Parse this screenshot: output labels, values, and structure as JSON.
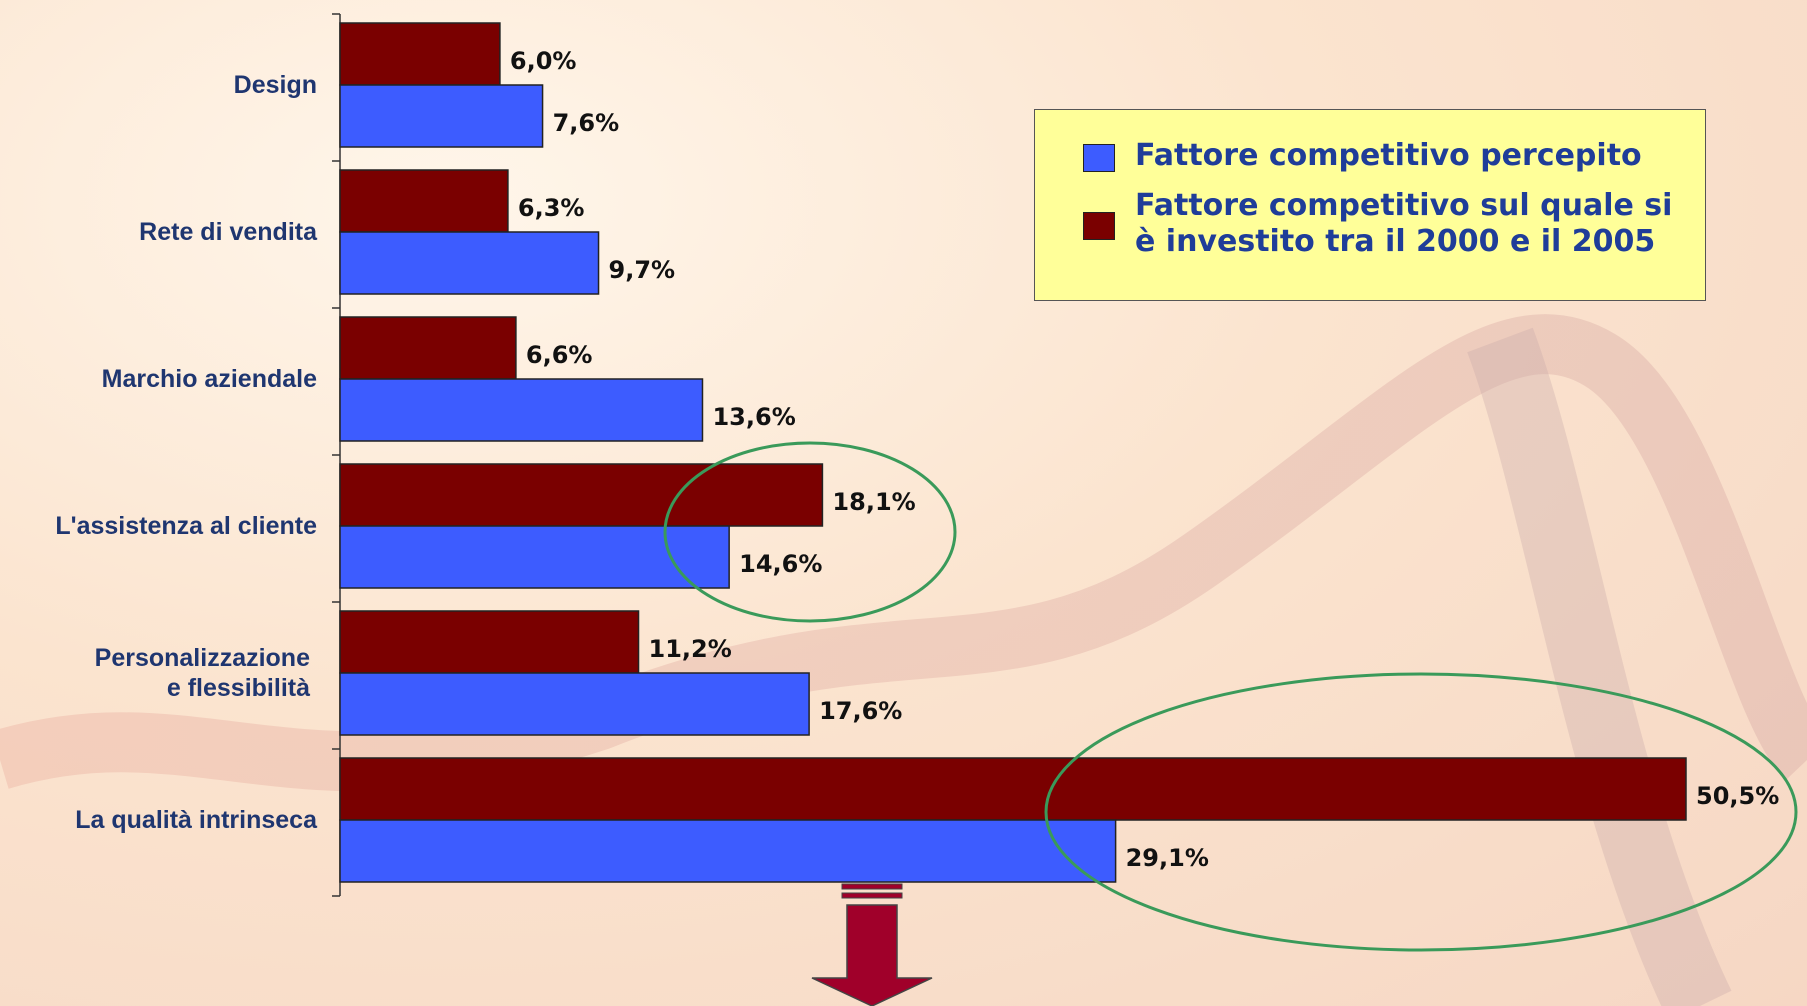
{
  "chart_data": {
    "type": "bar",
    "orientation": "horizontal",
    "categories": [
      "Design",
      "Rete di vendita",
      "Marchio aziendale",
      "L'assistenza al cliente",
      [
        "Personalizzazione",
        "e flessibilità"
      ],
      "La qualità intrinseca"
    ],
    "series": [
      {
        "name": "Fattore competitivo sul quale si è investito tra il 2000 e il 2005",
        "color": "#7a0000",
        "values": [
          6.0,
          6.3,
          6.6,
          18.1,
          11.2,
          50.5
        ],
        "value_labels": [
          "6,0%",
          "6,3%",
          "6,6%",
          "18,1%",
          "11,2%",
          "50,5%"
        ]
      },
      {
        "name": "Fattore competitivo percepito",
        "color": "#3d5cff",
        "values": [
          7.6,
          9.7,
          13.6,
          14.6,
          17.6,
          29.1
        ],
        "value_labels": [
          "7,6%",
          "9,7%",
          "13,6%",
          "14,6%",
          "17,6%",
          "29,1%"
        ]
      }
    ],
    "legend_order": [
      1,
      0
    ]
  }
}
